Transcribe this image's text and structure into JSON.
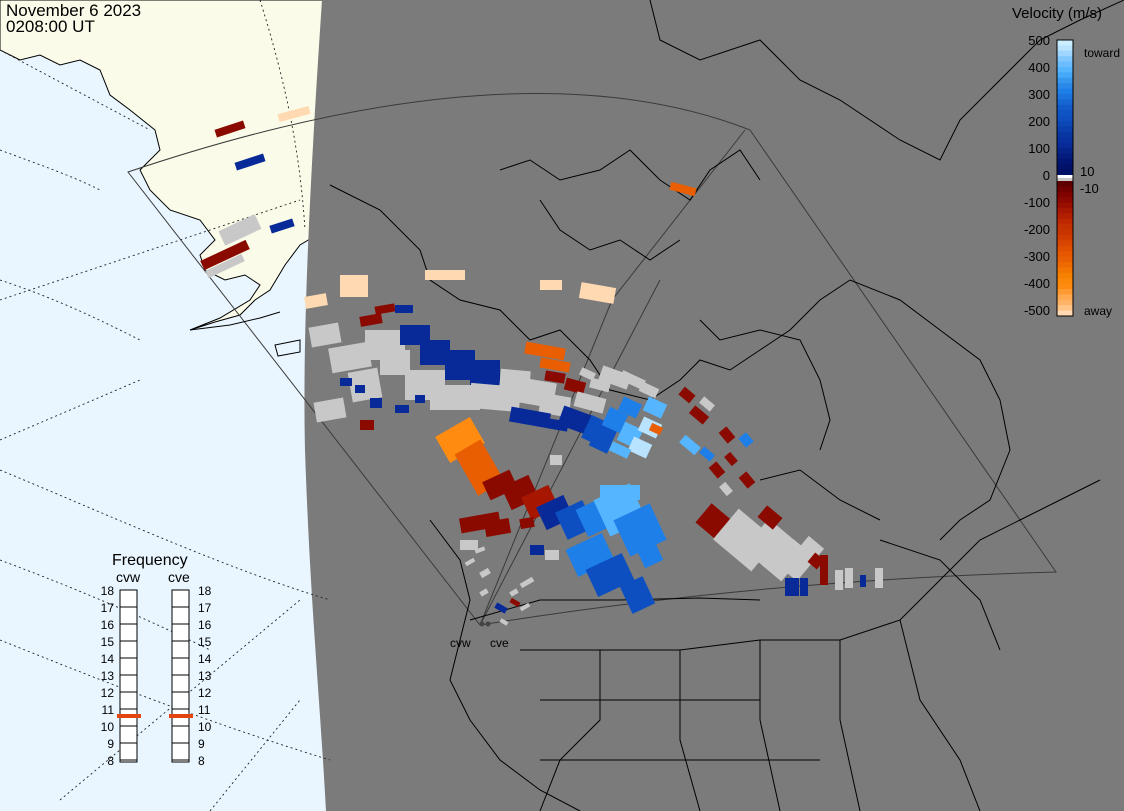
{
  "header": {
    "date": "November 6 2023",
    "time": "0208:00 UT"
  },
  "colors": {
    "ocean_day": "#e9f6ff",
    "land_day": "#fbfbe9",
    "night": "#7b7b7b",
    "ground_scatter": "#c8c8c8"
  },
  "legend": {
    "title": "Velocity (m/s)",
    "toward_label": "toward",
    "away_label": "away",
    "ticks": [
      "500",
      "400",
      "300",
      "200",
      "100",
      "10",
      "0",
      "-10",
      "-100",
      "-200",
      "-300",
      "-400",
      "-500"
    ],
    "colors": [
      "#b9e3ff",
      "#55b6ff",
      "#1f7fe8",
      "#0d4fc0",
      "#082a99",
      "#001066",
      "#5e0000",
      "#9a0f00",
      "#c83400",
      "#e95e00",
      "#ff8c10",
      "#ffb367",
      "#ffd9b2"
    ]
  },
  "radars": {
    "names": [
      "cvw",
      "cve"
    ],
    "field_of_view": "outline"
  },
  "frequency": {
    "title": "Frequency",
    "radars": [
      "cvw",
      "cve"
    ],
    "scale": [
      "18",
      "17",
      "16",
      "15",
      "14",
      "13",
      "12",
      "11",
      "10",
      "9",
      "8"
    ],
    "current_mhz": [
      11,
      11
    ],
    "marker_color": "#e34510"
  }
}
